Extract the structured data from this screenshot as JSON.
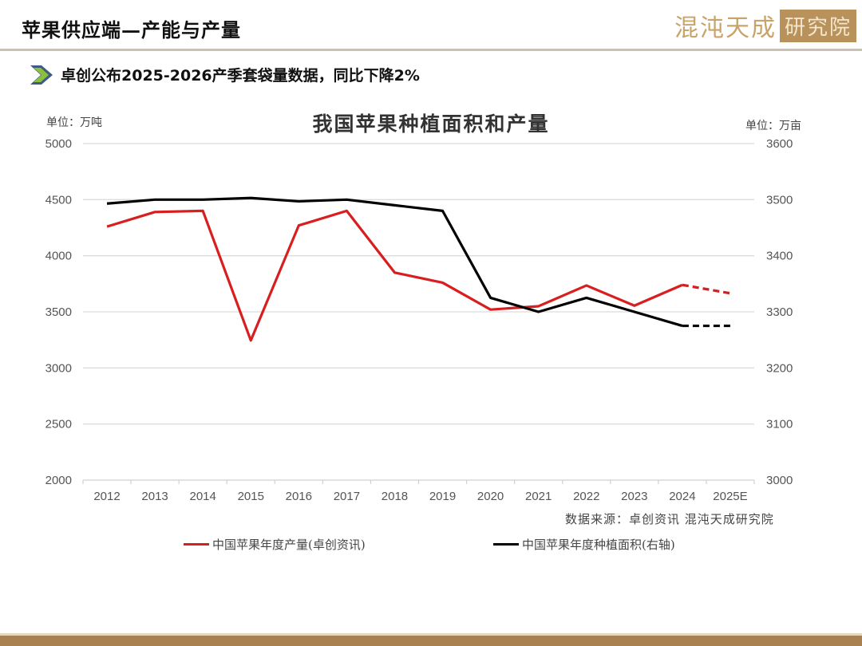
{
  "header": {
    "title": "苹果供应端—产能与产量",
    "logo_text": "混沌天成",
    "logo_badge": "研究院"
  },
  "subtitle": {
    "icon": "chevron-right-icon",
    "text": "卓创公布2025-2026产季套袋量数据，同比下降2%"
  },
  "colors": {
    "production": "#d81e1e",
    "area": "#000000",
    "gold": "#a98050"
  },
  "chart_data": {
    "type": "line",
    "title": "我国苹果种植面积和产量",
    "left_unit": "单位：万吨",
    "right_unit": "单位：万亩",
    "categories": [
      "2012",
      "2013",
      "2014",
      "2015",
      "2016",
      "2017",
      "2018",
      "2019",
      "2020",
      "2021",
      "2022",
      "2023",
      "2024",
      "2025E"
    ],
    "left_axis": {
      "ylim": [
        2000,
        5000
      ],
      "ticks": [
        "5000",
        "4500",
        "4000",
        "3500",
        "3000",
        "2500",
        "2000"
      ]
    },
    "right_axis": {
      "ylim": [
        3000,
        3600
      ],
      "ticks": [
        "3600",
        "3500",
        "3400",
        "3300",
        "3200",
        "3100",
        "3000"
      ]
    },
    "series": [
      {
        "name": "中国苹果年度产量(卓创资讯)",
        "axis": "left",
        "color": "#d81e1e",
        "values": [
          4260,
          4390,
          4400,
          3245,
          4270,
          4400,
          3850,
          3760,
          3520,
          3550,
          3735,
          3555,
          3740,
          3665
        ],
        "dashed_from_index": 12
      },
      {
        "name": "中国苹果年度种植面积(右轴)",
        "axis": "right",
        "color": "#000000",
        "values": [
          3493,
          3500,
          3500,
          3503,
          3497,
          3500,
          3490,
          3480,
          3325,
          3300,
          3325,
          3300,
          3275,
          3275
        ],
        "dashed_from_index": 12
      }
    ],
    "grid": true,
    "legend_position": "bottom",
    "source": "数据来源：卓创资讯  混沌天成研究院"
  }
}
